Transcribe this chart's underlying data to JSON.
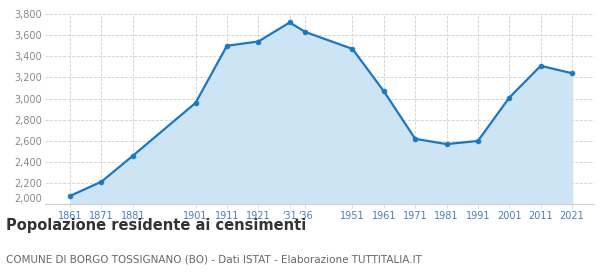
{
  "years": [
    1861,
    1871,
    1881,
    1901,
    1911,
    1921,
    1931,
    1936,
    1951,
    1961,
    1971,
    1981,
    1991,
    2001,
    2011,
    2021
  ],
  "population": [
    2080,
    2215,
    2460,
    2960,
    3500,
    3540,
    3720,
    3630,
    3470,
    3070,
    2620,
    2570,
    2600,
    3010,
    3310,
    3240
  ],
  "ylim": [
    2000,
    3800
  ],
  "yticks": [
    2200,
    2400,
    2600,
    2800,
    3000,
    3200,
    3400,
    3600,
    3800
  ],
  "ytick_labels": [
    "2,200",
    "2,400",
    "2,600",
    "2,800",
    "3,000",
    "3,200",
    "3,400",
    "3,600",
    "3,800"
  ],
  "yline_at_2000": true,
  "x_ticks": [
    1861,
    1871,
    1881,
    1901,
    1911,
    1921,
    1931,
    1936,
    1951,
    1961,
    1971,
    1981,
    1991,
    2001,
    2011,
    2021
  ],
  "x_tick_labels": [
    "1861",
    "1871",
    "1881",
    "1901",
    "1911",
    "1921",
    "'31",
    "'36",
    "1951",
    "1961",
    "1971",
    "1981",
    "1991",
    "2001",
    "2011",
    "2021"
  ],
  "xlim_left": 1853,
  "xlim_right": 2028,
  "line_color": "#1a78c2",
  "fill_color": "#cde4f5",
  "marker_size": 3.5,
  "line_width": 1.6,
  "grid_color": "#d0d0d0",
  "grid_style": "--",
  "tick_color": "#4a7db5",
  "ytick_color": "#888888",
  "bg_color": "#ffffff",
  "title": "Popolazione residente ai censimenti",
  "subtitle": "COMUNE DI BORGO TOSSIGNANO (BO) - Dati ISTAT - Elaborazione TUTTITALIA.IT",
  "title_fontsize": 10.5,
  "subtitle_fontsize": 7.5,
  "tick_fontsize": 7,
  "ytick_fontsize": 7
}
